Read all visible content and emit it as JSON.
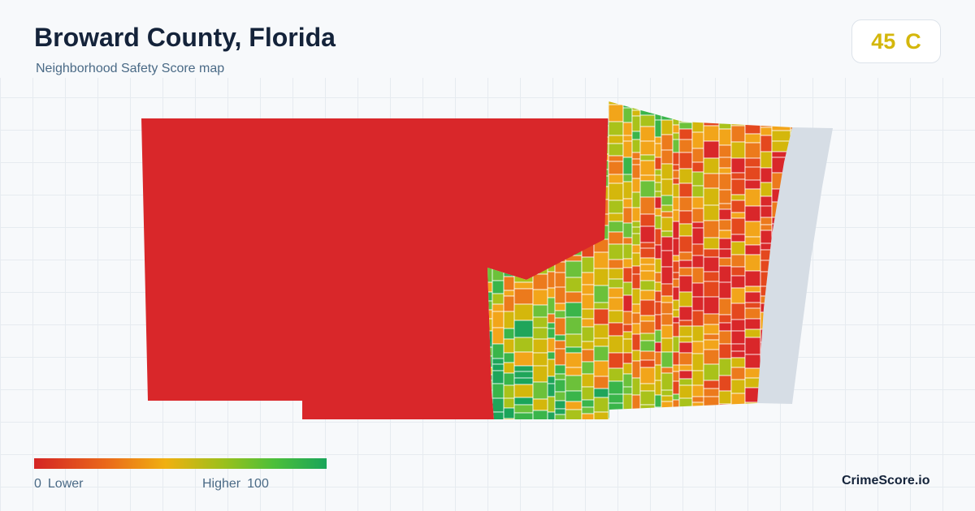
{
  "header": {
    "title": "Broward County, Florida",
    "subtitle": "Neighborhood Safety Score map"
  },
  "score": {
    "value": "45",
    "grade": "C",
    "color": "#d4b70c"
  },
  "legend": {
    "min": "0",
    "min_label": "Lower",
    "max_label": "Higher",
    "max": "100",
    "colors": [
      "#d42424",
      "#ea6a1a",
      "#f0b010",
      "#9ac01c",
      "#4cbf3a",
      "#1aa55a"
    ]
  },
  "map": {
    "west_region_color": "#d9272a",
    "coast_color": "#d6dde5",
    "tract_colors": [
      "#d9272a",
      "#e4481e",
      "#ec7a1c",
      "#f2a51a",
      "#d4b70c",
      "#a9c21a",
      "#6cc13a",
      "#3ab54a",
      "#1fa55a",
      "#1aa55a"
    ]
  },
  "brand": "CrimeScore.io"
}
